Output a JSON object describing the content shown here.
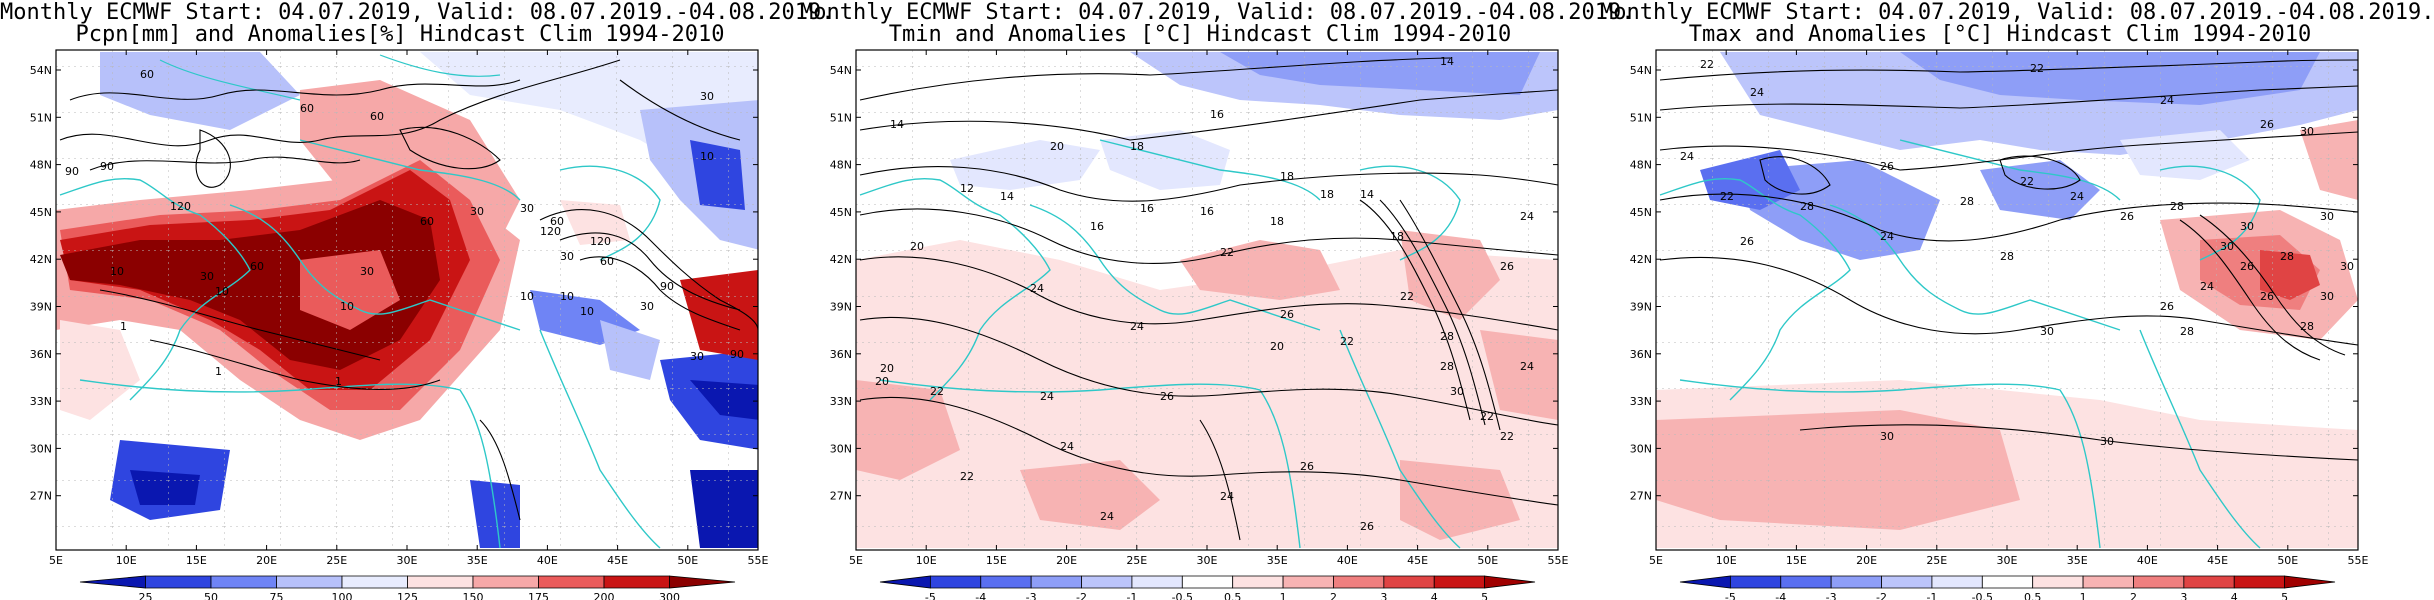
{
  "panels": [
    {
      "title_line1": "Monthly ECMWF Start: 04.07.2019, Valid: 08.07.2019.-04.08.2019.",
      "title_line2": "Pcpn[mm] and Anomalies[%] Hindcast Clim 1994-2010",
      "lat_labels": [
        "54N",
        "51N",
        "48N",
        "45N",
        "42N",
        "39N",
        "36N",
        "33N",
        "30N",
        "27N"
      ],
      "lon_labels": [
        "5E",
        "10E",
        "15E",
        "20E",
        "25E",
        "30E",
        "35E",
        "40E",
        "45E",
        "50E",
        "55E"
      ],
      "colorbar_labels": [
        "25",
        "50",
        "75",
        "100",
        "125",
        "150",
        "175",
        "200",
        "300"
      ],
      "colorbar_colors": [
        "#0a17b0",
        "#2f45e0",
        "#6f84f5",
        "#b7c1fa",
        "#e8ecfe",
        "#fde2e2",
        "#f6a8a8",
        "#ea5b5b",
        "#c91414",
        "#8b0000"
      ],
      "contour_labels": [
        "60",
        "60",
        "60",
        "90",
        "90",
        "120",
        "120",
        "60",
        "60",
        "30",
        "30",
        "30",
        "30",
        "30",
        "10",
        "10",
        "10",
        "30",
        "60",
        "10",
        "90",
        "10",
        "1",
        "1",
        "1",
        "120",
        "60",
        "30",
        "10",
        "10",
        "30",
        "90"
      ]
    },
    {
      "title_line1": "Monthly ECMWF Start: 04.07.2019, Valid: 08.07.2019.-04.08.2019.",
      "title_line2": "Tmin and Anomalies [°C] Hindcast Clim 1994-2010",
      "lat_labels": [
        "54N",
        "51N",
        "48N",
        "45N",
        "42N",
        "39N",
        "36N",
        "33N",
        "30N",
        "27N"
      ],
      "lon_labels": [
        "5E",
        "10E",
        "15E",
        "20E",
        "25E",
        "30E",
        "35E",
        "40E",
        "45E",
        "50E",
        "55E"
      ],
      "colorbar_labels": [
        "-5",
        "-4",
        "-3",
        "-2",
        "-1",
        "-0.5",
        "0.5",
        "1",
        "2",
        "3",
        "4",
        "5"
      ],
      "colorbar_colors": [
        "#0a17b0",
        "#2f45e0",
        "#5a6ff0",
        "#8e9ef7",
        "#bcc5fb",
        "#e3e7fe",
        "#ffffff",
        "#fde2e2",
        "#f7b3b3",
        "#ef7f7f",
        "#e04444",
        "#c91414",
        "#a00000"
      ],
      "contour_labels": [
        "14",
        "14",
        "18",
        "16",
        "20",
        "12",
        "14",
        "16",
        "18",
        "18",
        "20",
        "22",
        "24",
        "20",
        "24",
        "26",
        "16",
        "18",
        "22",
        "24",
        "26",
        "22",
        "24",
        "26",
        "22",
        "28",
        "30",
        "24",
        "26",
        "28",
        "20",
        "22",
        "24",
        "26",
        "22",
        "24",
        "14",
        "16",
        "18",
        "20",
        "22",
        "24"
      ]
    },
    {
      "title_line1": "Monthly ECMWF Start: 04.07.2019, Valid: 08.07.2019.-04.08.2019.",
      "title_line2": "Tmax and Anomalies [°C] Hindcast Clim 1994-2010",
      "lat_labels": [
        "54N",
        "51N",
        "48N",
        "45N",
        "42N",
        "39N",
        "36N",
        "33N",
        "30N",
        "27N"
      ],
      "lon_labels": [
        "5E",
        "10E",
        "15E",
        "20E",
        "25E",
        "30E",
        "35E",
        "40E",
        "45E",
        "50E",
        "55E"
      ],
      "colorbar_labels": [
        "-5",
        "-4",
        "-3",
        "-2",
        "-1",
        "-0.5",
        "0.5",
        "1",
        "2",
        "3",
        "4",
        "5"
      ],
      "colorbar_colors": [
        "#0a17b0",
        "#2f45e0",
        "#5a6ff0",
        "#8e9ef7",
        "#bcc5fb",
        "#e3e7fe",
        "#ffffff",
        "#fde2e2",
        "#f7b3b3",
        "#ef7f7f",
        "#e04444",
        "#c91414",
        "#a00000"
      ],
      "contour_labels": [
        "22",
        "22",
        "24",
        "24",
        "26",
        "26",
        "28",
        "30",
        "30",
        "24",
        "26",
        "28",
        "24",
        "22",
        "26",
        "28",
        "26",
        "28",
        "30",
        "24",
        "26",
        "28",
        "30",
        "30",
        "22",
        "24",
        "28",
        "30",
        "26",
        "28",
        "30",
        "30",
        "30"
      ]
    }
  ]
}
